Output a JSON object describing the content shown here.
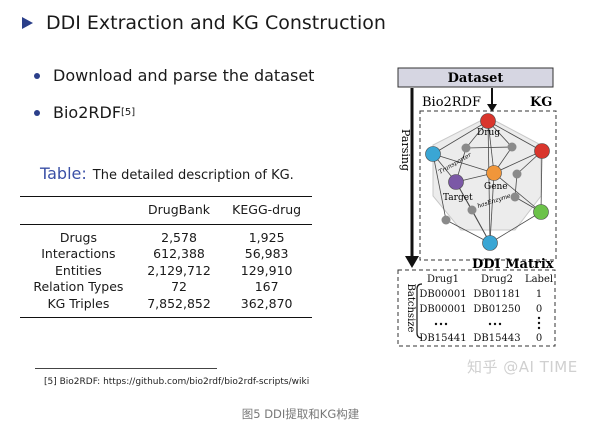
{
  "header": {
    "title": "DDI Extraction and KG Construction"
  },
  "bullets": [
    {
      "text": "Download and parse the dataset",
      "sup": ""
    },
    {
      "text": "Bio2RDF",
      "sup": "[5]"
    }
  ],
  "table": {
    "caption_label": "Table:",
    "caption_text": "The detailed description of KG.",
    "columns": [
      "",
      "DrugBank",
      "KEGG-drug"
    ],
    "rows": [
      [
        "Drugs",
        "2,578",
        "1,925"
      ],
      [
        "Interactions",
        "612,388",
        "56,983"
      ],
      [
        "Entities",
        "2,129,712",
        "129,910"
      ],
      [
        "Relation Types",
        "72",
        "167"
      ],
      [
        "KG Triples",
        "7,852,852",
        "362,870"
      ]
    ]
  },
  "footnote": "[5] Bio2RDF: https://github.com/bio2rdf/bio2rdf-scripts/wiki",
  "caption": "图5 DDI提取和KG构建",
  "watermark": "知乎 @AI TIME",
  "diagram": {
    "dataset_label": "Dataset",
    "bio2rdf_label": "Bio2RDF",
    "kg_label": "KG",
    "parsing_label": "Parsing",
    "node_labels": {
      "drug": "Drug",
      "gene": "Gene",
      "target": "Target"
    },
    "edge_labels": {
      "transporter": "Transporter",
      "has_enzyme": "hasEnzyme"
    },
    "matrix_title": "DDI Matrix",
    "batchsize_label": "Batchsize",
    "matrix_headers": [
      "Drug1",
      "Drug2",
      "Label"
    ],
    "matrix_rows": [
      [
        "DB00001",
        "DB01181",
        "1"
      ],
      [
        "DB00001",
        "DB01250",
        "0"
      ],
      [
        "DB15441",
        "DB15443",
        "0"
      ]
    ],
    "colors": {
      "red": "#d9362d",
      "blue": "#3aa6d4",
      "green": "#6cc24a",
      "orange": "#f0963a",
      "purple": "#7b58a6",
      "grey": "#8a8a8a"
    }
  }
}
